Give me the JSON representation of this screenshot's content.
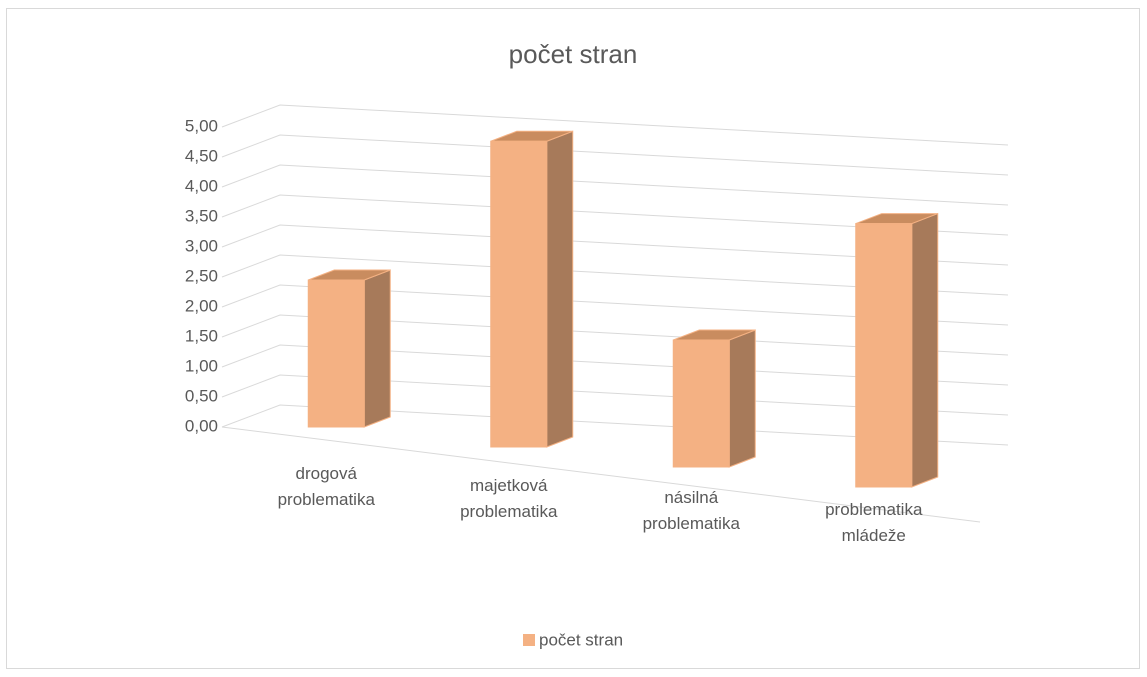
{
  "chart_data": {
    "type": "bar3d",
    "title": "počet stran",
    "categories": [
      "drogová problematika",
      "majetková problematika",
      "násilná problematika",
      "problematika mládeže"
    ],
    "series": [
      {
        "name": "počet stran",
        "color": "#f4b183",
        "values": [
          2.5,
          5,
          2,
          4
        ]
      }
    ],
    "ylim": [
      0,
      5
    ],
    "yticks": [
      {
        "value": 0,
        "label": "0,00"
      },
      {
        "value": 0.5,
        "label": "0,50"
      },
      {
        "value": 1,
        "label": "1,00"
      },
      {
        "value": 1.5,
        "label": "1,50"
      },
      {
        "value": 2,
        "label": "2,00"
      },
      {
        "value": 2.5,
        "label": "2,50"
      },
      {
        "value": 3,
        "label": "3,00"
      },
      {
        "value": 3.5,
        "label": "3,50"
      },
      {
        "value": 4,
        "label": "4,00"
      },
      {
        "value": 4.5,
        "label": "4,50"
      },
      {
        "value": 5,
        "label": "5,00"
      }
    ],
    "grid": true,
    "legend": "bottom"
  }
}
